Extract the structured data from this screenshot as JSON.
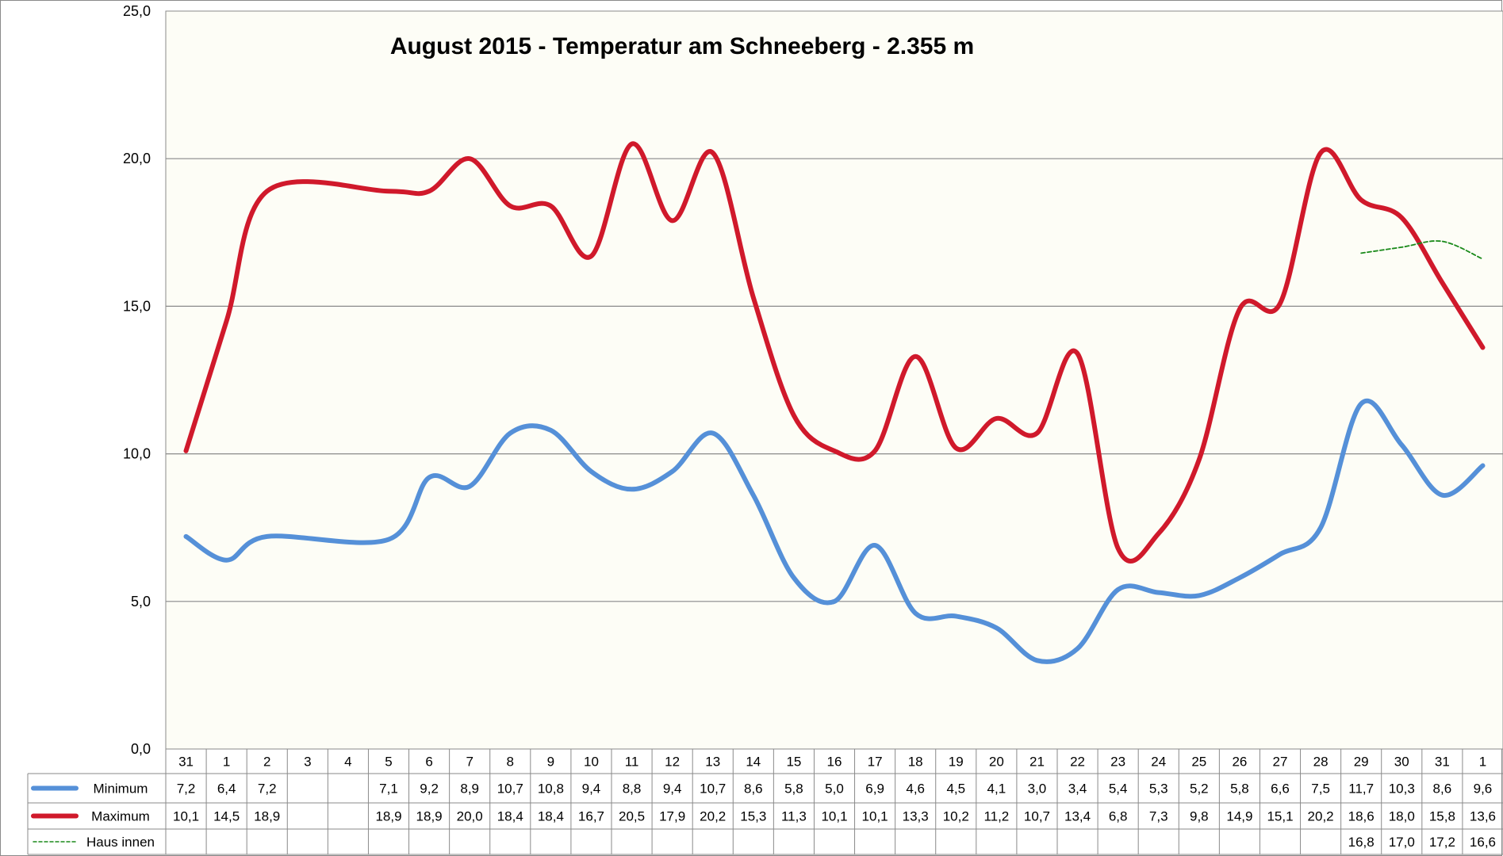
{
  "chart_data": {
    "type": "line",
    "title": "August 2015 - Temperatur am Schneeberg - 2.355 m",
    "ylim": [
      0,
      25
    ],
    "yticks": [
      "0,0",
      "5,0",
      "10,0",
      "15,0",
      "20,0",
      "25,0"
    ],
    "grid": true,
    "legend": "bottom-left data table",
    "categories": [
      "31",
      "1",
      "2",
      "3",
      "4",
      "5",
      "6",
      "7",
      "8",
      "9",
      "10",
      "11",
      "12",
      "13",
      "14",
      "15",
      "16",
      "17",
      "18",
      "19",
      "20",
      "21",
      "22",
      "23",
      "24",
      "25",
      "26",
      "27",
      "28",
      "29",
      "30",
      "31",
      "1"
    ],
    "series": [
      {
        "name": "Minimum",
        "color": "#5590d8",
        "values": [
          7.2,
          6.4,
          7.2,
          null,
          null,
          7.1,
          9.2,
          8.9,
          10.7,
          10.8,
          9.4,
          8.8,
          9.4,
          10.7,
          8.6,
          5.8,
          5.0,
          6.9,
          4.6,
          4.5,
          4.1,
          3.0,
          3.4,
          5.4,
          5.3,
          5.2,
          5.8,
          6.6,
          7.5,
          11.7,
          10.3,
          8.6,
          9.6
        ],
        "labels": [
          "7,2",
          "6,4",
          "7,2",
          "",
          "",
          "7,1",
          "9,2",
          "8,9",
          "10,7",
          "10,8",
          "9,4",
          "8,8",
          "9,4",
          "10,7",
          "8,6",
          "5,8",
          "5,0",
          "6,9",
          "4,6",
          "4,5",
          "4,1",
          "3,0",
          "3,4",
          "5,4",
          "5,3",
          "5,2",
          "5,8",
          "6,6",
          "7,5",
          "11,7",
          "10,3",
          "8,6",
          "9,6"
        ]
      },
      {
        "name": "Maximum",
        "color": "#d0192b",
        "values": [
          10.1,
          14.5,
          18.9,
          null,
          null,
          18.9,
          18.9,
          20.0,
          18.4,
          18.4,
          16.7,
          20.5,
          17.9,
          20.2,
          15.3,
          11.3,
          10.1,
          10.1,
          13.3,
          10.2,
          11.2,
          10.7,
          13.4,
          6.8,
          7.3,
          9.8,
          14.9,
          15.1,
          20.2,
          18.6,
          18.0,
          15.8,
          13.6
        ],
        "labels": [
          "10,1",
          "14,5",
          "18,9",
          "",
          "",
          "18,9",
          "18,9",
          "20,0",
          "18,4",
          "18,4",
          "16,7",
          "20,5",
          "17,9",
          "20,2",
          "15,3",
          "11,3",
          "10,1",
          "10,1",
          "13,3",
          "10,2",
          "11,2",
          "10,7",
          "13,4",
          "6,8",
          "7,3",
          "9,8",
          "14,9",
          "15,1",
          "20,2",
          "18,6",
          "18,0",
          "15,8",
          "13,6"
        ]
      },
      {
        "name": "Haus innen",
        "color": "#1a8a1a",
        "values": [
          null,
          null,
          null,
          null,
          null,
          null,
          null,
          null,
          null,
          null,
          null,
          null,
          null,
          null,
          null,
          null,
          null,
          null,
          null,
          null,
          null,
          null,
          null,
          null,
          null,
          null,
          null,
          null,
          null,
          16.8,
          17.0,
          17.2,
          16.6
        ],
        "labels": [
          "",
          "",
          "",
          "",
          "",
          "",
          "",
          "",
          "",
          "",
          "",
          "",
          "",
          "",
          "",
          "",
          "",
          "",
          "",
          "",
          "",
          "",
          "",
          "",
          "",
          "",
          "",
          "",
          "",
          "16,8",
          "17,0",
          "17,2",
          "16,6"
        ]
      }
    ]
  }
}
